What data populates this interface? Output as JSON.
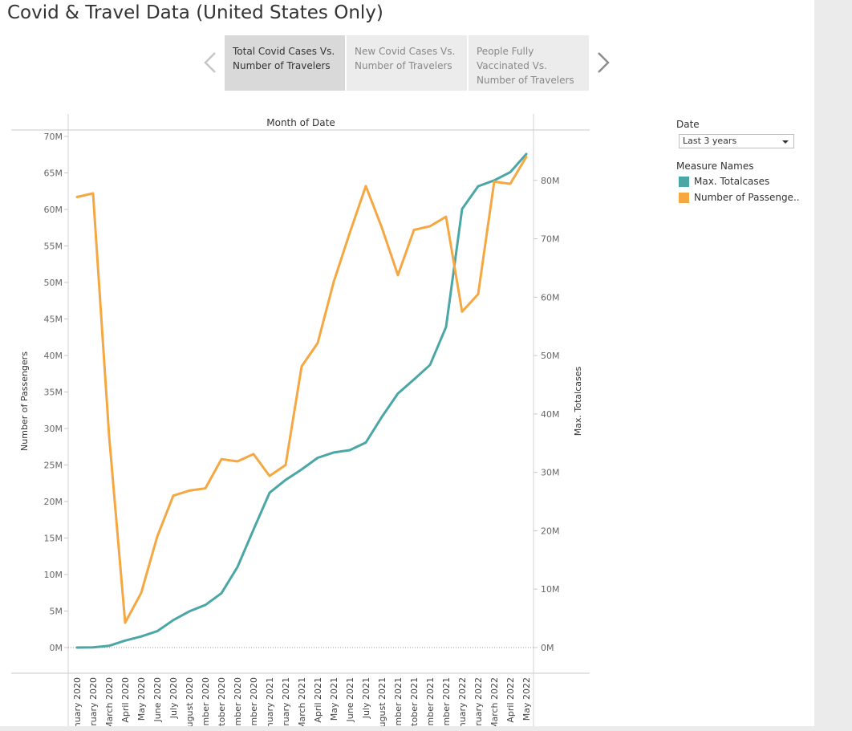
{
  "title": "Covid & Travel Data (United States Only)",
  "story_tabs": [
    {
      "label": "Total Covid Cases Vs.\nNumber of Travelers",
      "active": true
    },
    {
      "label": "New Covid Cases Vs.\nNumber of Travelers",
      "active": false
    },
    {
      "label": "People Fully\nVaccinated Vs.\nNumber of Travelers",
      "active": false
    }
  ],
  "filters": {
    "date_title": "Date",
    "date_value": "Last 3 years",
    "measure_title": "Measure Names"
  },
  "colors": {
    "teal": "#4aa7a6",
    "orange": "#f5a742",
    "axis": "#c8c8c8",
    "text": "#555555"
  },
  "chart_data": {
    "type": "line",
    "title": "Month of Date",
    "xlabel": "Month of Date",
    "y_left_label": "Number of Passengers",
    "y_right_label": "Max. Totalcases",
    "y_left_range": [
      0,
      70000000
    ],
    "y_right_range": [
      0,
      90000000
    ],
    "y_left_ticks": [
      "0M",
      "5M",
      "10M",
      "15M",
      "20M",
      "25M",
      "30M",
      "35M",
      "40M",
      "45M",
      "50M",
      "55M",
      "60M",
      "65M",
      "70M"
    ],
    "y_right_ticks": [
      "0M",
      "10M",
      "20M",
      "30M",
      "40M",
      "50M",
      "60M",
      "70M",
      "80M"
    ],
    "categories": [
      "nuary 2020",
      "bruary 2020",
      "March 2020",
      "April 2020",
      "May 2020",
      "June 2020",
      "July 2020",
      "ugust 2020",
      "ember 2020",
      "tober 2020",
      "ember 2020",
      "ember 2020",
      "nuary 2021",
      "bruary 2021",
      "March 2021",
      "April 2021",
      "May 2021",
      "June 2021",
      "July 2021",
      "ugust 2021",
      "ember 2021",
      "tober 2021",
      "ember 2021",
      "ember 2021",
      "nuary 2022",
      "bruary 2022",
      "March 2022",
      "April 2022",
      "May 2022"
    ],
    "series": [
      {
        "name": "Max. Totalcases",
        "axis": "right",
        "color": "#4aa7a6",
        "values": [
          0,
          30000,
          300000,
          1200000,
          1900000,
          2800000,
          4700000,
          6200000,
          7300000,
          9300000,
          13800000,
          20200000,
          26500000,
          28700000,
          30500000,
          32500000,
          33400000,
          33800000,
          35100000,
          39500000,
          43500000,
          45900000,
          48400000,
          54900000,
          75100000,
          79000000,
          80000000,
          81400000,
          84500000
        ]
      },
      {
        "name": "Number of Passenge..",
        "axis": "left",
        "color": "#f5a742",
        "values": [
          61700000,
          62200000,
          29000000,
          3400000,
          7500000,
          15200000,
          20800000,
          21500000,
          21800000,
          25800000,
          25500000,
          26500000,
          23500000,
          25000000,
          38500000,
          41700000,
          50100000,
          56800000,
          63200000,
          57500000,
          51000000,
          57200000,
          57700000,
          59000000,
          46000000,
          48400000,
          63800000,
          63500000,
          67200000
        ]
      }
    ]
  }
}
